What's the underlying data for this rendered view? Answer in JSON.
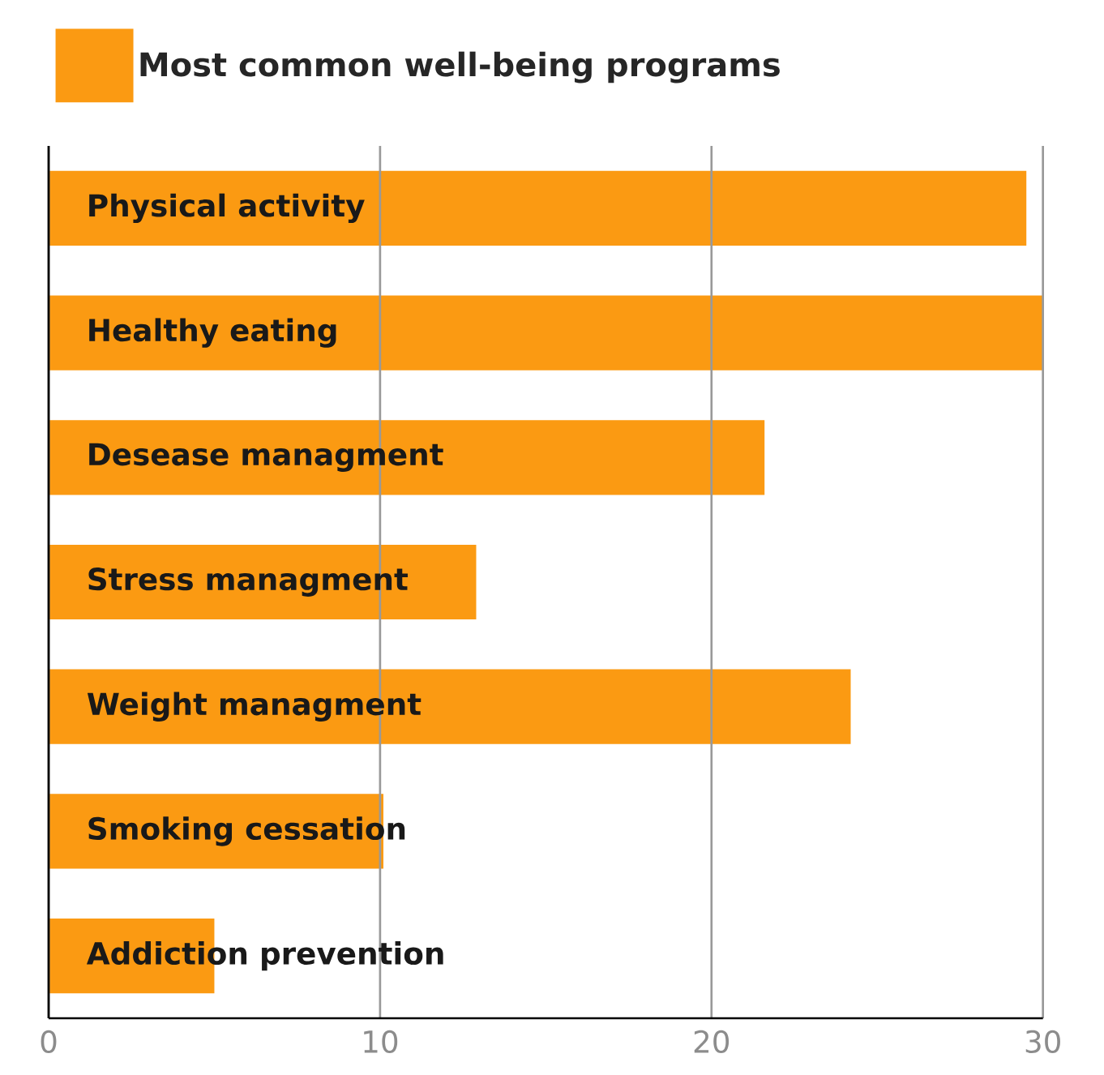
{
  "chart_data": {
    "type": "bar",
    "orientation": "horizontal",
    "categories": [
      "Physical activity",
      "Healthy eating",
      "Desease managment",
      "Stress managment",
      "Weight managment",
      "Smoking cessation",
      "Addiction prevention"
    ],
    "series": [
      {
        "name": "Most common well-being programs",
        "color": "#fb9a12",
        "values": [
          29.5,
          30,
          21.6,
          12.9,
          24.2,
          10.1,
          5.0
        ]
      }
    ],
    "xlim": [
      0,
      30
    ],
    "xticks": [
      0,
      10,
      20,
      30
    ],
    "grid": "x",
    "legend": "top left"
  }
}
